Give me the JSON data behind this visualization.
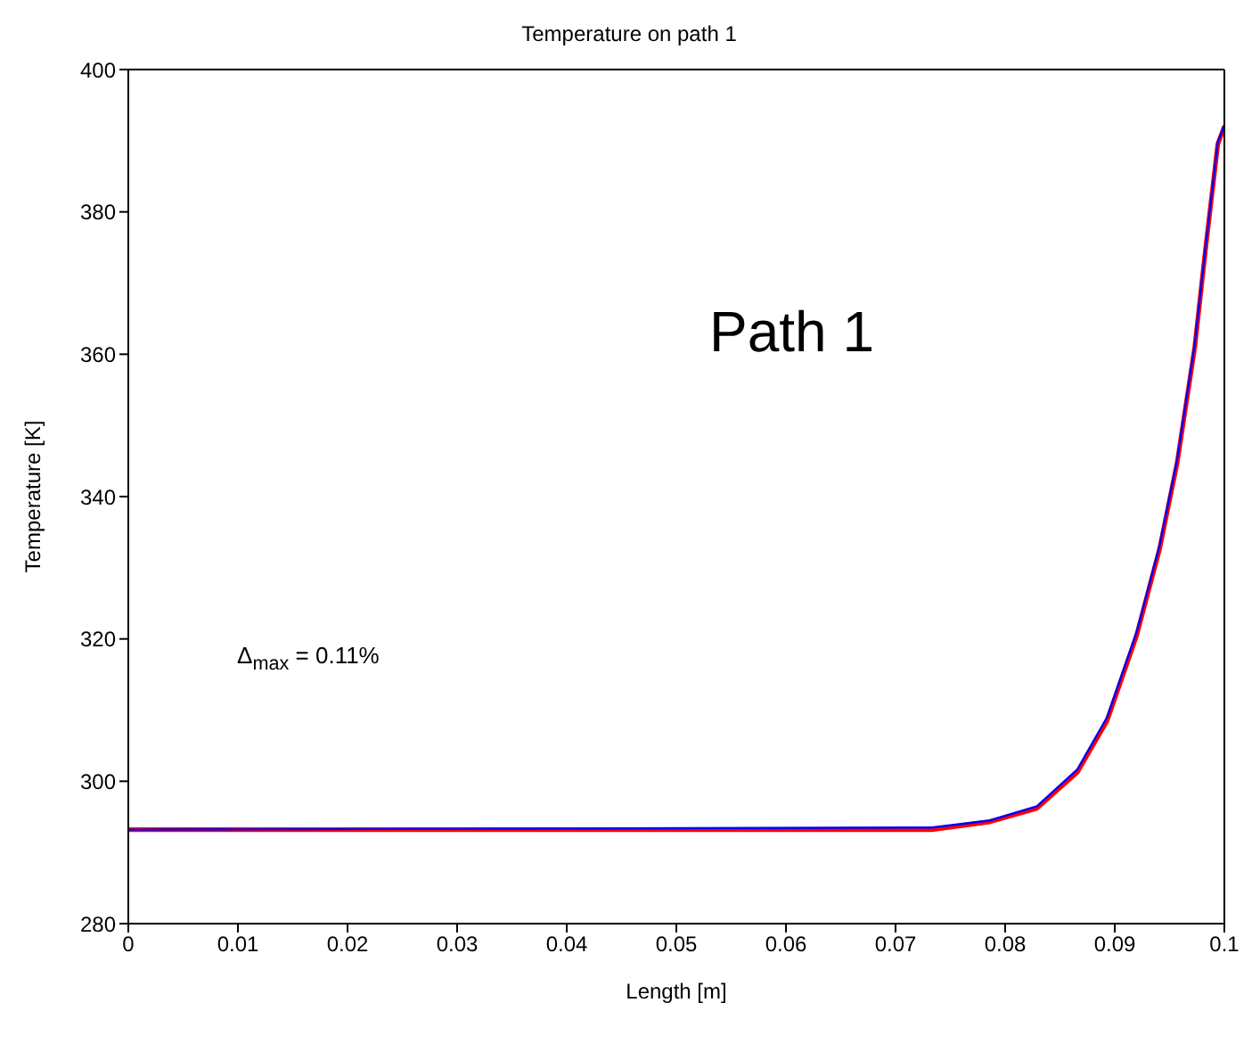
{
  "chart_data": {
    "type": "line",
    "title": "Temperature on path 1",
    "xlabel": "Length [m]",
    "ylabel": "Temperature [K]",
    "xlim": [
      0,
      0.1
    ],
    "xticks": [
      0,
      0.01,
      0.02,
      0.03,
      0.04,
      0.05,
      0.06,
      0.07,
      0.08,
      0.09,
      0.1
    ],
    "ylim": [
      280,
      400
    ],
    "yticks": [
      280,
      300,
      320,
      340,
      360,
      380,
      400
    ],
    "grid": false,
    "legend": false,
    "marker": "none",
    "line_style": "solid",
    "annotations": [
      "Path 1",
      "Δ$_{max}$ = 0.11%"
    ],
    "series": [
      {
        "color": "#ff0000",
        "x": [
          0,
          0.0733,
          0.0786,
          0.0829,
          0.0866,
          0.0893,
          0.092,
          0.0941,
          0.0957,
          0.0973,
          0.0983,
          0.0994,
          0.1
        ],
        "values": [
          293.2,
          293.2,
          294.3,
          296.2,
          301.3,
          308.5,
          320.5,
          332.7,
          344.8,
          361,
          375,
          389.5,
          392
        ]
      },
      {
        "color": "#0000ff",
        "x": [
          0,
          0.0733,
          0.0786,
          0.0829,
          0.0866,
          0.0893,
          0.092,
          0.0941,
          0.0957,
          0.0973,
          0.0983,
          0.0994,
          0.1
        ],
        "values": [
          293.2,
          293.5,
          294.5,
          296.5,
          301.7,
          309,
          321,
          333.2,
          345.3,
          361.5,
          375.3,
          389.8,
          392.2
        ]
      }
    ]
  }
}
